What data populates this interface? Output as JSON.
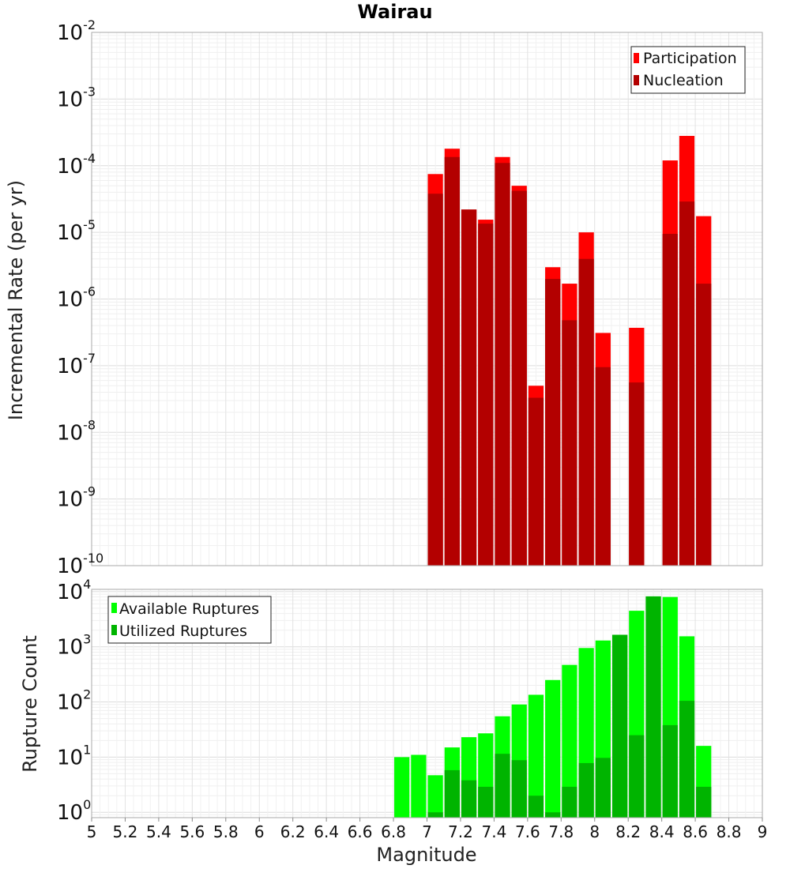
{
  "chart_data": [
    {
      "type": "bar",
      "title": "Wairau",
      "ylabel": "Incremental Rate (per yr)",
      "y_scale": "log",
      "ylim": [
        1e-10,
        0.01
      ],
      "y_tick_exponents": [
        -10,
        -9,
        -8,
        -7,
        -6,
        -5,
        -4,
        -3,
        -2
      ],
      "xlim": [
        5,
        9
      ],
      "grid": true,
      "legend_placement": "top-right",
      "x": [
        7.05,
        7.15,
        7.25,
        7.35,
        7.45,
        7.55,
        7.65,
        7.75,
        7.85,
        7.95,
        8.05,
        8.15,
        8.25,
        8.35,
        8.45,
        8.55,
        8.65
      ],
      "series": [
        {
          "name": "Participation",
          "color": "#ff0000",
          "values": [
            7.5e-05,
            0.00018,
            2.2e-05,
            1.55e-05,
            0.000135,
            5e-05,
            5e-08,
            3e-06,
            1.7e-06,
            1e-05,
            3.1e-07,
            null,
            3.7e-07,
            null,
            0.00012,
            0.00028,
            1.75e-05
          ]
        },
        {
          "name": "Nucleation",
          "color": "#b30000",
          "values": [
            3.8e-05,
            0.000135,
            2.2e-05,
            1.35e-05,
            0.00011,
            4.2e-05,
            3.3e-08,
            2e-06,
            4.8e-07,
            4e-06,
            9.5e-08,
            null,
            5.6e-08,
            null,
            9.5e-06,
            2.9e-05,
            1.7e-06
          ]
        }
      ]
    },
    {
      "type": "bar",
      "xlabel": "Magnitude",
      "ylabel": "Rupture Count",
      "y_scale": "log",
      "ylim": [
        0.8,
        11000.0
      ],
      "y_tick_exponents": [
        0,
        1,
        2,
        3,
        4
      ],
      "xlim": [
        5,
        9
      ],
      "x_ticks": [
        "5",
        "5.2",
        "5.4",
        "5.6",
        "5.8",
        "6",
        "6.2",
        "6.4",
        "6.6",
        "6.8",
        "7",
        "7.2",
        "7.4",
        "7.6",
        "7.8",
        "8",
        "8.2",
        "8.4",
        "8.6",
        "8.8",
        "9"
      ],
      "grid": true,
      "legend_placement": "top-left",
      "x": [
        6.85,
        6.95,
        7.05,
        7.15,
        7.25,
        7.35,
        7.45,
        7.55,
        7.65,
        7.75,
        7.85,
        7.95,
        8.05,
        8.15,
        8.25,
        8.35,
        8.45,
        8.55,
        8.65
      ],
      "series": [
        {
          "name": "Available Ruptures",
          "color": "#00ff00",
          "values": [
            10,
            11,
            4.7,
            15,
            23,
            27,
            55,
            90,
            135,
            250,
            470,
            950,
            1300,
            1650,
            4500,
            8200,
            8000,
            1550,
            16
          ]
        },
        {
          "name": "Utilized Ruptures",
          "color": "#00b400",
          "values": [
            null,
            null,
            1,
            5.8,
            3.8,
            2.9,
            11.5,
            8.8,
            2,
            1,
            2.9,
            7.8,
            9.7,
            1650,
            25,
            8200,
            38,
            105,
            2.9
          ]
        }
      ]
    }
  ]
}
